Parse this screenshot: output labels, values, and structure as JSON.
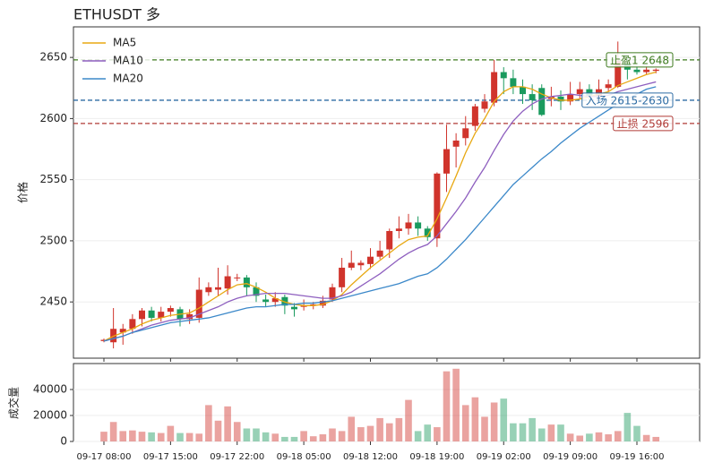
{
  "chart_data": {
    "type": "candlestick",
    "title": "ETHUSDT  多",
    "ylabel": "价格",
    "volume_label": "成交量",
    "up_color": "#d0342c",
    "down_color": "#1a9a5e",
    "categories": [
      "09-17 08:00",
      null,
      null,
      null,
      null,
      null,
      null,
      "09-17 15:00",
      null,
      null,
      null,
      null,
      null,
      null,
      "09-17 22:00",
      null,
      null,
      null,
      null,
      null,
      null,
      "09-18 05:00",
      null,
      null,
      null,
      null,
      null,
      null,
      "09-18 12:00",
      null,
      null,
      null,
      null,
      null,
      null,
      "09-18 19:00",
      null,
      null,
      null,
      null,
      null,
      null,
      "09-19 02:00",
      null,
      null,
      null,
      null,
      null,
      null,
      "09-19 09:00",
      null,
      null,
      null,
      null,
      null,
      null,
      "09-19 16:00",
      null,
      null
    ],
    "open": [
      2418,
      2417,
      2425,
      2428,
      2436,
      2443,
      2437,
      2442,
      2444,
      2436,
      2437,
      2458,
      2460,
      2461,
      2470,
      2470,
      2462,
      2452,
      2450,
      2454,
      2446,
      2446,
      2447,
      2447,
      2452,
      2462,
      2478,
      2480,
      2481,
      2487,
      2493,
      2508,
      2510,
      2515,
      2510,
      2502,
      2555,
      2577,
      2584,
      2594,
      2608,
      2613,
      2638,
      2633,
      2626,
      2620,
      2625,
      2616,
      2618,
      2614,
      2620,
      2624,
      2618,
      2625,
      2626,
      2645,
      2640,
      2638,
      2639
    ],
    "close": [
      2419,
      2428,
      2428,
      2436,
      2443,
      2437,
      2442,
      2445,
      2436,
      2440,
      2460,
      2462,
      2462,
      2471,
      2470,
      2462,
      2455,
      2450,
      2453,
      2447,
      2444,
      2447,
      2448,
      2451,
      2462,
      2478,
      2482,
      2482,
      2487,
      2492,
      2508,
      2510,
      2515,
      2510,
      2503,
      2555,
      2575,
      2582,
      2592,
      2610,
      2614,
      2638,
      2633,
      2626,
      2620,
      2615,
      2603,
      2618,
      2614,
      2620,
      2624,
      2618,
      2624,
      2628,
      2647,
      2640,
      2638,
      2640,
      2640
    ],
    "high": [
      2420,
      2445,
      2432,
      2440,
      2445,
      2446,
      2446,
      2447,
      2446,
      2444,
      2470,
      2466,
      2478,
      2480,
      2473,
      2472,
      2466,
      2456,
      2458,
      2456,
      2449,
      2452,
      2450,
      2455,
      2465,
      2486,
      2492,
      2484,
      2494,
      2500,
      2510,
      2520,
      2522,
      2520,
      2512,
      2556,
      2595,
      2588,
      2602,
      2612,
      2620,
      2648,
      2642,
      2640,
      2632,
      2628,
      2628,
      2626,
      2623,
      2630,
      2630,
      2628,
      2632,
      2632,
      2663,
      2651,
      2643,
      2643,
      2641
    ],
    "low": [
      2417,
      2412,
      2415,
      2424,
      2430,
      2434,
      2434,
      2438,
      2430,
      2432,
      2433,
      2455,
      2455,
      2456,
      2467,
      2455,
      2450,
      2446,
      2446,
      2440,
      2438,
      2443,
      2444,
      2445,
      2450,
      2458,
      2476,
      2476,
      2477,
      2485,
      2486,
      2502,
      2505,
      2504,
      2500,
      2495,
      2540,
      2560,
      2578,
      2590,
      2605,
      2610,
      2620,
      2620,
      2612,
      2607,
      2602,
      2610,
      2607,
      2611,
      2616,
      2614,
      2615,
      2622,
      2625,
      2632,
      2636,
      2636,
      2637
    ],
    "volume": [
      7500,
      15000,
      8000,
      8500,
      7500,
      7000,
      6500,
      12000,
      6500,
      6500,
      6000,
      28000,
      16000,
      27000,
      15000,
      10000,
      10000,
      7000,
      6000,
      3500,
      3500,
      8000,
      4000,
      5500,
      10000,
      8000,
      19000,
      11000,
      12000,
      18000,
      14000,
      18000,
      32000,
      8000,
      13000,
      11000,
      54000,
      56000,
      28000,
      34000,
      19000,
      30000,
      33000,
      14000,
      14000,
      18000,
      10000,
      13000,
      13000,
      6000,
      4500,
      6000,
      7000,
      5500,
      8000,
      22000,
      12000,
      5000,
      3500
    ],
    "series": [
      {
        "name": "MA5",
        "color": "#e8a812",
        "values": [
          2418,
          2422,
          2425,
          2428,
          2432,
          2435,
          2437,
          2439,
          2440,
          2441,
          2445,
          2450,
          2455,
          2460,
          2464,
          2465,
          2462,
          2458,
          2453,
          2450,
          2448,
          2447,
          2447,
          2448,
          2451,
          2456,
          2464,
          2471,
          2478,
          2484,
          2490,
          2496,
          2501,
          2503,
          2504,
          2518,
          2535,
          2553,
          2572,
          2588,
          2600,
          2614,
          2622,
          2626,
          2626,
          2624,
          2620,
          2617,
          2615,
          2615,
          2616,
          2618,
          2620,
          2622,
          2627,
          2630,
          2633,
          2636,
          2638
        ]
      },
      {
        "name": "MA10",
        "color": "#8e5fbf",
        "values": [
          2418,
          2420,
          2422,
          2425,
          2428,
          2431,
          2433,
          2435,
          2436,
          2437,
          2440,
          2443,
          2446,
          2450,
          2453,
          2455,
          2456,
          2457,
          2457,
          2457,
          2456,
          2455,
          2454,
          2453,
          2453,
          2455,
          2458,
          2463,
          2468,
          2473,
          2479,
          2485,
          2490,
          2494,
          2497,
          2504,
          2514,
          2524,
          2535,
          2548,
          2560,
          2574,
          2587,
          2598,
          2606,
          2612,
          2616,
          2618,
          2619,
          2620,
          2619,
          2618,
          2618,
          2619,
          2622,
          2624,
          2626,
          2628,
          2630
        ]
      },
      {
        "name": "MA20",
        "color": "#3b88c9",
        "values": [
          2418,
          2420,
          2422,
          2425,
          2427,
          2429,
          2431,
          2433,
          2434,
          2435,
          2436,
          2437,
          2439,
          2441,
          2443,
          2445,
          2446,
          2446,
          2447,
          2448,
          2448,
          2449,
          2449,
          2450,
          2451,
          2453,
          2455,
          2457,
          2459,
          2461,
          2463,
          2465,
          2468,
          2471,
          2473,
          2478,
          2485,
          2493,
          2501,
          2510,
          2519,
          2528,
          2537,
          2546,
          2553,
          2560,
          2567,
          2573,
          2580,
          2586,
          2592,
          2597,
          2602,
          2607,
          2612,
          2616,
          2620,
          2624,
          2626
        ]
      }
    ],
    "levels": [
      {
        "value": 2648,
        "label": "止盈1 2648",
        "color": "#3d7a1e"
      },
      {
        "value": 2615,
        "label": "入场 2615-2630",
        "color": "#2e6ca4"
      },
      {
        "value": 2596,
        "label": "止损 2596",
        "color": "#b03a36"
      }
    ],
    "ylim": [
      2404,
      2675
    ],
    "yticks": [
      2450,
      2500,
      2550,
      2600,
      2650
    ],
    "volume_ylim": [
      0,
      60000
    ],
    "volume_yticks": [
      0,
      20000,
      40000
    ],
    "grid": true,
    "legend": "upper left"
  }
}
